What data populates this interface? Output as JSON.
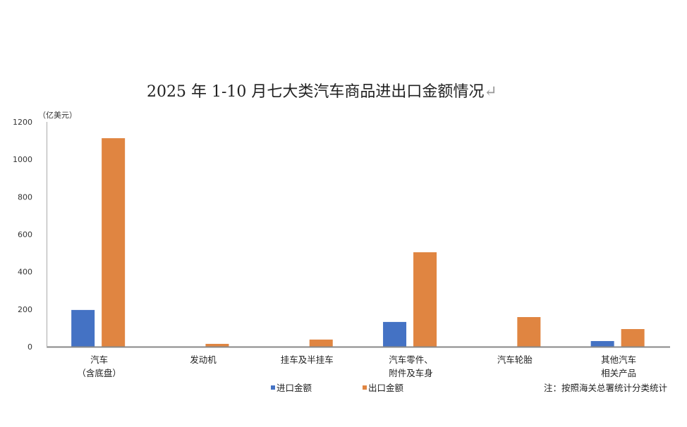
{
  "chart_data": {
    "type": "bar",
    "title": "2025 年 1-10 月七大类汽车商品进出口金额情况",
    "title_mark": "↵",
    "ylabel": "（亿美元）",
    "xlabel": "",
    "ylim": [
      0,
      1200
    ],
    "yticks": [
      "0",
      "200",
      "400",
      "600",
      "800",
      "1000",
      "1200"
    ],
    "categories": [
      [
        "汽车",
        "（含底盘）"
      ],
      [
        "发动机"
      ],
      [
        "挂车及半挂车"
      ],
      [
        "汽车零件、",
        "附件及车身"
      ],
      [
        "汽车轮胎"
      ],
      [
        "其他汽车",
        "相关产品"
      ]
    ],
    "series": [
      {
        "name": "进口金额",
        "color": "#4472C4",
        "values": [
          196,
          0,
          0,
          132,
          0,
          30
        ]
      },
      {
        "name": "出口金额",
        "color": "#E08541",
        "values": [
          1113,
          15,
          38,
          504,
          158,
          94
        ]
      }
    ],
    "grid": false,
    "legend_position": "bottom",
    "note": "注：按照海关总署统计分类统计"
  }
}
